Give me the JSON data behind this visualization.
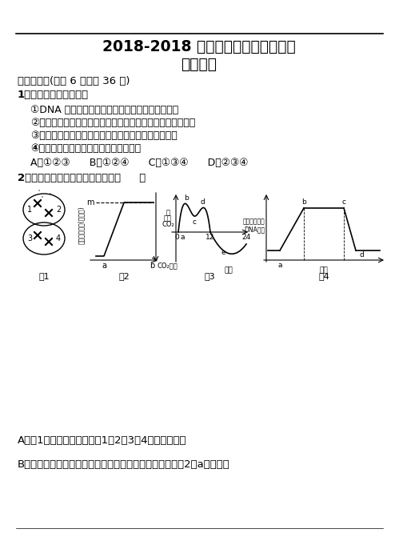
{
  "bg_color": "#ffffff",
  "title_line1": "2018-2018 天津一中四月考理科综合",
  "title_line2": "生物试卷",
  "section1": "一、选择题(每题 6 分，共 36 分)",
  "q1_stem": "1．下列叙述中错误的是",
  "q1_opts": [
    "①DNA 分子结构的基本骨架决定蛋白质的空间结构",
    "②在分泌蛋白的合成和分泌中，内质网起重要的交通枢纽作用",
    "③溶酶体能将大分子物质水解但不能将其彻底氧化分解",
    "④细胞骨架是由磷脂分子构成的网架结构"
  ],
  "q1_choices": "A．①②③      B．①②④      C．①③④      D．②③④",
  "q2_stem": "2．对下列四幅图的描述正确的是（     ）",
  "fig_labels": [
    "图1",
    "图2",
    "图3",
    "图4"
  ],
  "ans_A": "A．图1中含两个染色体组，1与2、3与4为同源染色体",
  "ans_B": "B．在适宜的温度、水肥等条件下，适当增加光照强度，图2中a点右移，"
}
